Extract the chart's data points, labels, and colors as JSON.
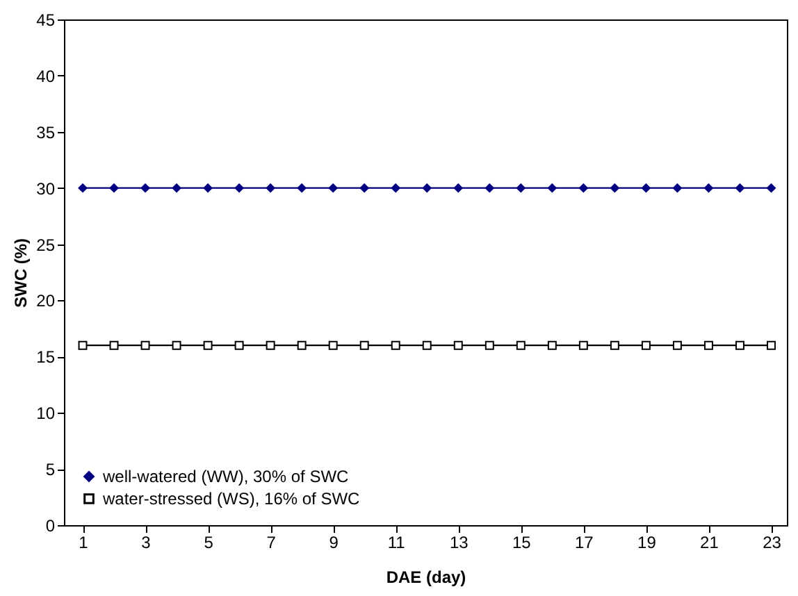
{
  "chart_data": {
    "type": "line",
    "xlabel": "DAE (day)",
    "ylabel": "SWC (%)",
    "x": [
      1,
      2,
      3,
      4,
      5,
      6,
      7,
      8,
      9,
      10,
      11,
      12,
      13,
      14,
      15,
      16,
      17,
      18,
      19,
      20,
      21,
      22,
      23
    ],
    "xlim": [
      0.4,
      23.5
    ],
    "xticks": [
      1,
      3,
      5,
      7,
      9,
      11,
      13,
      15,
      17,
      19,
      21,
      23
    ],
    "ylim": [
      0,
      45
    ],
    "yticks": [
      0,
      5,
      10,
      15,
      20,
      25,
      30,
      35,
      40,
      45
    ],
    "grid": false,
    "legend": "bottom left",
    "line_style": "solid",
    "series": [
      {
        "name": "well-watered (WW), 30% of SWC",
        "color": "#000080",
        "marker": "diamond",
        "values": [
          30,
          30,
          30,
          30,
          30,
          30,
          30,
          30,
          30,
          30,
          30,
          30,
          30,
          30,
          30,
          30,
          30,
          30,
          30,
          30,
          30,
          30,
          30
        ]
      },
      {
        "name": "water-stressed (WS), 16% of SWC",
        "color": "#000000",
        "marker": "square",
        "values": [
          16,
          16,
          16,
          16,
          16,
          16,
          16,
          16,
          16,
          16,
          16,
          16,
          16,
          16,
          16,
          16,
          16,
          16,
          16,
          16,
          16,
          16,
          16
        ]
      }
    ]
  }
}
